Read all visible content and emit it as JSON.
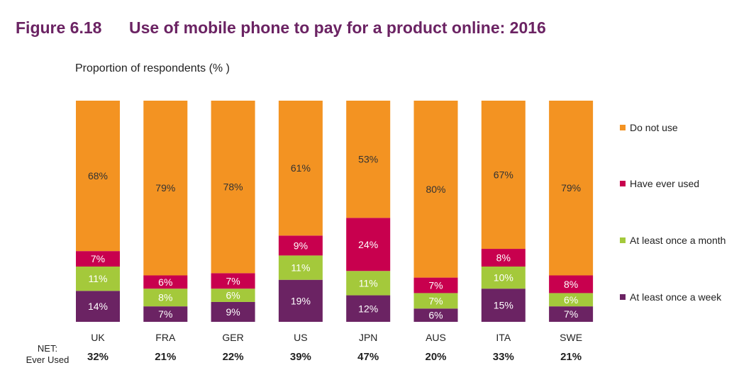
{
  "header": {
    "figure_number": "Figure 6.18",
    "title": "Use of mobile phone to pay for a product online: 2016"
  },
  "chart_data": {
    "type": "bar",
    "stacked": true,
    "ylabel": "Proportion of respondents (% )",
    "categories": [
      "UK",
      "FRA",
      "GER",
      "US",
      "JPN",
      "AUS",
      "ITA",
      "SWE"
    ],
    "series": [
      {
        "name": "At least once a week",
        "color": "#6b2363",
        "values": [
          14,
          7,
          9,
          19,
          12,
          6,
          15,
          7
        ]
      },
      {
        "name": "At least once a month",
        "color": "#a4c93b",
        "values": [
          11,
          8,
          6,
          11,
          11,
          7,
          10,
          6
        ]
      },
      {
        "name": "Have ever used",
        "color": "#c8004e",
        "values": [
          7,
          6,
          7,
          9,
          24,
          7,
          8,
          8
        ]
      },
      {
        "name": "Do not use",
        "color": "#f39322",
        "values": [
          68,
          79,
          78,
          61,
          53,
          80,
          67,
          79
        ]
      }
    ],
    "legend_position": "right",
    "legend_order": [
      "Do not use",
      "Have ever used",
      "At least once a month",
      "At least once a week"
    ],
    "net": {
      "label_line1": "NET:",
      "label_line2": "Ever Used",
      "values": [
        "32%",
        "21%",
        "22%",
        "39%",
        "47%",
        "20%",
        "33%",
        "21%"
      ]
    },
    "ylim": [
      0,
      100
    ],
    "grid": false
  }
}
